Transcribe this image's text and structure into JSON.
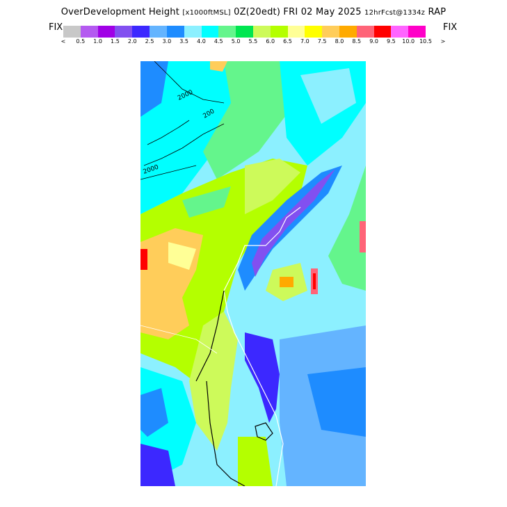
{
  "header": {
    "title_main": "OverDevelopment Height",
    "title_units": "[x1000ftMSL]",
    "title_time": "0Z(20edt) FRI 02 May 2025",
    "title_fcst": "12hrFcst@1334z",
    "title_model": "RAP"
  },
  "legend": {
    "fix_left": "FIX",
    "fix_right": "FIX",
    "colors": [
      "#c8c8c8",
      "#b45af0",
      "#a000e6",
      "#8250f0",
      "#3c28ff",
      "#64b4ff",
      "#1e8cff",
      "#8cf0ff",
      "#00ffff",
      "#64f58c",
      "#00e650",
      "#cdfa5a",
      "#b4ff00",
      "#ffff96",
      "#ffff00",
      "#ffcd5a",
      "#ffaa00",
      "#ff6478",
      "#ff0000",
      "#ff64ff",
      "#ff00c8"
    ],
    "tick_labels": [
      "<",
      "0.5",
      "1.0",
      "1.5",
      "2.0",
      "2.5",
      "3.0",
      "3.5",
      "4.0",
      "4.5",
      "5.0",
      "5.5",
      "6.0",
      "6.5",
      "7.0",
      "7.5",
      "8.0",
      "8.5",
      "9.0",
      "9.5",
      "10.0",
      "10.5",
      ">"
    ]
  },
  "map": {
    "contour_labels": [
      "2000",
      "200",
      "2000"
    ]
  }
}
